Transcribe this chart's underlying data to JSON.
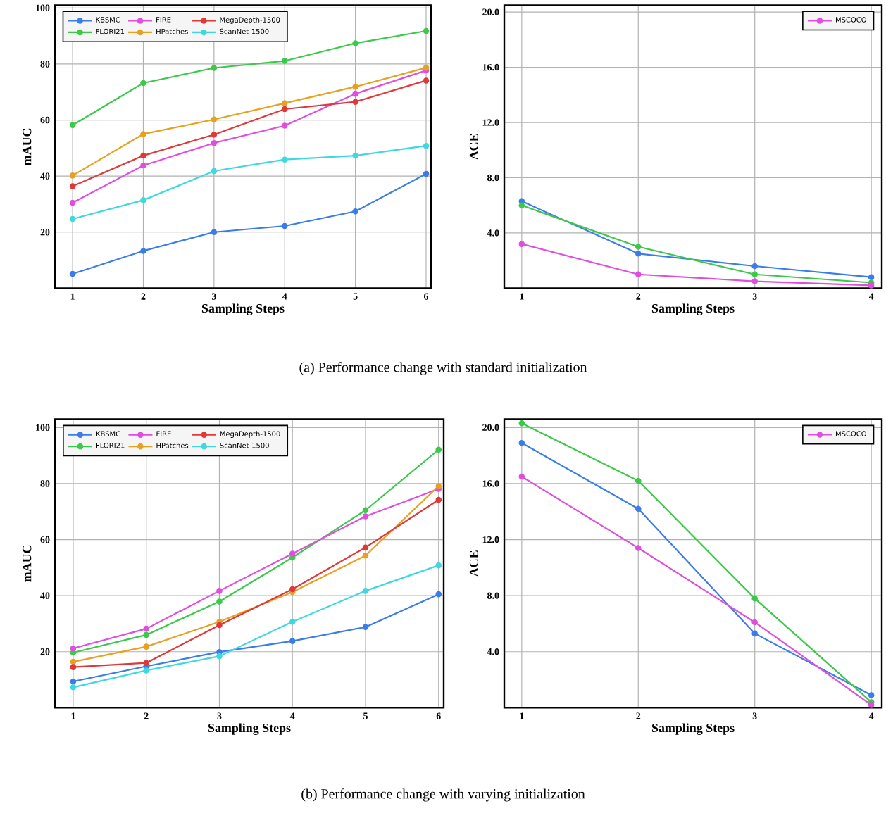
{
  "chart_data": [
    {
      "type": "line",
      "xlabel": "Sampling Steps",
      "ylabel": "mAUC",
      "x": [
        1,
        2,
        3,
        4,
        5,
        6
      ],
      "xlim": [
        0.75,
        6.07
      ],
      "ylim": [
        0,
        101
      ],
      "xticks": [
        1,
        2,
        3,
        4,
        5,
        6
      ],
      "yticks": [
        20,
        40,
        60,
        80,
        100
      ],
      "grid": true,
      "legend": "top left",
      "marker": "circle",
      "line_style": "solid",
      "annotations": [
        "(a) Performance change with standard initialization"
      ],
      "series": [
        {
          "name": "KBSMC",
          "color": "#3b7de8",
          "values": [
            5.1,
            13.3,
            20.0,
            22.2,
            27.4,
            40.8
          ]
        },
        {
          "name": "FLORI21",
          "color": "#3cc94a",
          "values": [
            58.2,
            73.2,
            78.6,
            81.1,
            87.4,
            91.8
          ]
        },
        {
          "name": "FIRE",
          "color": "#e04ee0",
          "values": [
            30.5,
            43.8,
            51.8,
            58.0,
            69.4,
            77.7
          ]
        },
        {
          "name": "HPatches",
          "color": "#e8a020",
          "values": [
            40.2,
            55.0,
            60.2,
            66.0,
            71.9,
            78.7
          ]
        },
        {
          "name": "MegaDepth-1500",
          "color": "#e03838",
          "values": [
            36.4,
            47.3,
            54.8,
            63.9,
            66.5,
            74.1
          ]
        },
        {
          "name": "ScanNet-1500",
          "color": "#40d8e0",
          "values": [
            24.7,
            31.4,
            41.8,
            45.9,
            47.3,
            50.8
          ]
        }
      ]
    },
    {
      "type": "line",
      "xlabel": "Sampling Steps",
      "ylabel": "ACE",
      "x": [
        1,
        2,
        3,
        4
      ],
      "xlim": [
        0.85,
        4.09
      ],
      "ylim": [
        0,
        20.5
      ],
      "xticks": [
        1,
        2,
        3,
        4
      ],
      "yticks": [
        {
          "value": 4,
          "label": "4.0"
        },
        {
          "value": 8,
          "label": "8.0"
        },
        {
          "value": 12,
          "label": "12.0"
        },
        {
          "value": 16,
          "label": "16.0"
        },
        {
          "value": 20,
          "label": "20.0"
        }
      ],
      "grid": true,
      "legend": "top right",
      "marker": "circle",
      "line_style": "solid",
      "series": [
        {
          "color": "#3b7de8",
          "values": [
            6.3,
            2.5,
            1.6,
            0.8
          ]
        },
        {
          "color": "#3cc94a",
          "values": [
            6.0,
            3.0,
            1.0,
            0.4
          ]
        },
        {
          "name": "MSCOCO",
          "color": "#e04ee0",
          "values": [
            3.2,
            1.0,
            0.5,
            0.2
          ]
        }
      ]
    },
    {
      "type": "line",
      "xlabel": "Sampling Steps",
      "ylabel": "mAUC",
      "x": [
        1,
        2,
        3,
        4,
        5,
        6
      ],
      "xlim": [
        0.75,
        6.07
      ],
      "ylim": [
        0,
        103
      ],
      "xticks": [
        1,
        2,
        3,
        4,
        5,
        6
      ],
      "yticks": [
        20,
        40,
        60,
        80,
        100
      ],
      "grid": true,
      "legend": "top left",
      "marker": "circle",
      "line_style": "solid",
      "annotations": [
        "(b) Performance change with varying initialization"
      ],
      "series": [
        {
          "name": "KBSMC",
          "color": "#3b7de8",
          "values": [
            9.4,
            14.8,
            19.9,
            23.8,
            28.8,
            40.5
          ]
        },
        {
          "name": "FLORI21",
          "color": "#3cc94a",
          "values": [
            19.7,
            26.0,
            37.9,
            53.6,
            70.5,
            92.1
          ]
        },
        {
          "name": "FIRE",
          "color": "#e04ee0",
          "values": [
            21.2,
            28.2,
            41.7,
            55.0,
            68.3,
            78.1
          ]
        },
        {
          "name": "HPatches",
          "color": "#e8a020",
          "values": [
            16.4,
            21.8,
            30.7,
            41.3,
            54.3,
            79.1
          ]
        },
        {
          "name": "MegaDepth-1500",
          "color": "#e03838",
          "values": [
            14.5,
            16.0,
            29.5,
            42.3,
            57.2,
            74.2
          ]
        },
        {
          "name": "ScanNet-1500",
          "color": "#40d8e0",
          "values": [
            7.3,
            13.3,
            18.4,
            30.7,
            41.7,
            50.8
          ]
        }
      ]
    },
    {
      "type": "line",
      "xlabel": "Sampling Steps",
      "ylabel": "ACE",
      "x": [
        1,
        2,
        3,
        4
      ],
      "xlim": [
        0.85,
        4.09
      ],
      "ylim": [
        0,
        20.6
      ],
      "xticks": [
        1,
        2,
        3,
        4
      ],
      "yticks": [
        {
          "value": 4,
          "label": "4.0"
        },
        {
          "value": 8,
          "label": "8.0"
        },
        {
          "value": 12,
          "label": "12.0"
        },
        {
          "value": 16,
          "label": "16.0"
        },
        {
          "value": 20,
          "label": "20.0"
        }
      ],
      "grid": true,
      "legend": "top right",
      "marker": "circle",
      "line_style": "solid",
      "series": [
        {
          "color": "#3b7de8",
          "values": [
            18.9,
            14.2,
            5.3,
            0.9
          ]
        },
        {
          "color": "#3cc94a",
          "values": [
            20.3,
            16.2,
            7.8,
            0.4
          ]
        },
        {
          "name": "MSCOCO",
          "color": "#e04ee0",
          "values": [
            16.5,
            11.4,
            6.1,
            0.2
          ]
        }
      ]
    }
  ]
}
